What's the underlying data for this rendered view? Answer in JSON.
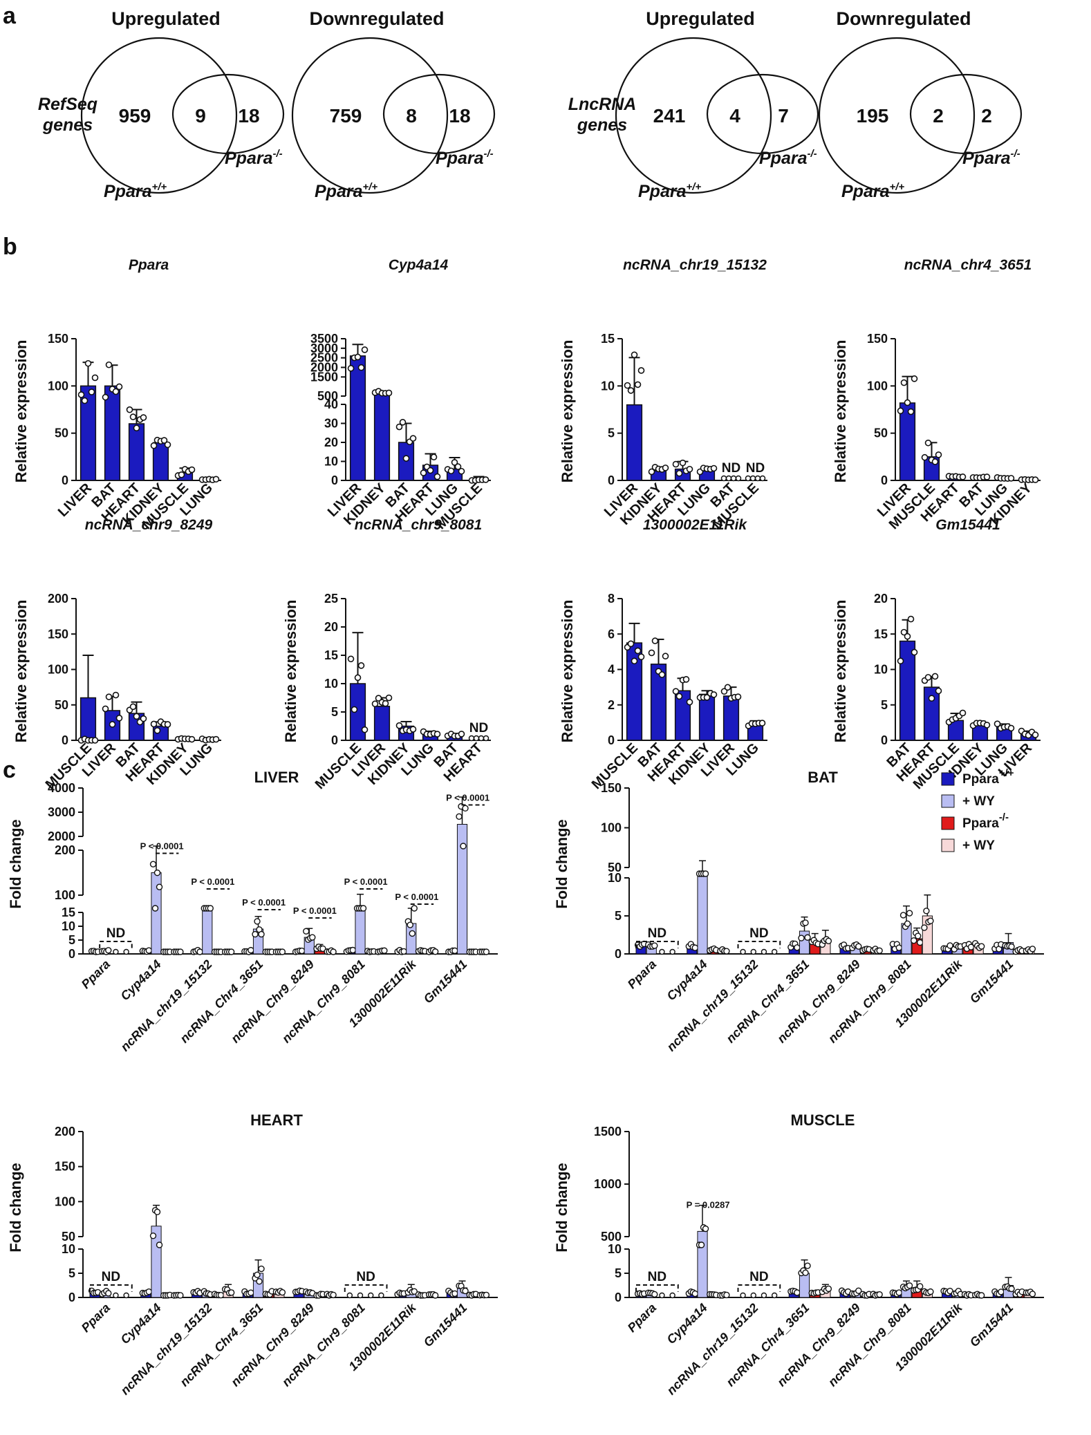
{
  "panel_labels": {
    "a": "a",
    "b": "b",
    "c": "c"
  },
  "venn": [
    {
      "id": "refseq-up",
      "title": "Upregulated",
      "left_label": "RefSeq\ngenes",
      "only_wt": "959",
      "overlap": "9",
      "only_ko": "18",
      "wt_label": "Ppara+/+",
      "ko_label": "Ppara-/-"
    },
    {
      "id": "refseq-down",
      "title": "Downregulated",
      "left_label": "",
      "only_wt": "759",
      "overlap": "8",
      "only_ko": "18",
      "wt_label": "Ppara+/+",
      "ko_label": "Ppara-/-"
    },
    {
      "id": "lnc-up",
      "title": "Upregulated",
      "left_label": "LncRNA\ngenes",
      "only_wt": "241",
      "overlap": "4",
      "only_ko": "7",
      "wt_label": "Ppara+/+",
      "ko_label": "Ppara-/-"
    },
    {
      "id": "lnc-down",
      "title": "Downregulated",
      "left_label": "",
      "only_wt": "195",
      "overlap": "2",
      "only_ko": "2",
      "wt_label": "Ppara+/+",
      "ko_label": "Ppara-/-"
    }
  ],
  "colors": {
    "wt": "#1b1bbf",
    "wt_wy": "#b9bdf2",
    "ko": "#e01b1b",
    "ko_wy": "#f7d9d9"
  },
  "legend": [
    {
      "label": "Ppara+/+",
      "color": "#1b1bbf"
    },
    {
      "label": "+ WY",
      "color": "#b9bdf2"
    },
    {
      "label": "Ppara-/-",
      "color": "#e01b1b"
    },
    {
      "label": "+ WY",
      "color": "#f7d9d9"
    }
  ],
  "chart_data": [
    {
      "id": "b-ppara",
      "type": "bar",
      "title": "Ppara",
      "ylabel": "Relative expression",
      "yticks": [
        "0",
        "50",
        "100",
        "150"
      ],
      "categories": [
        "LIVER",
        "BAT",
        "HEART",
        "KIDNEY",
        "MUSCLE",
        "LUNG"
      ],
      "values": [
        100,
        100,
        60,
        40,
        8,
        1
      ],
      "errors": [
        25,
        22,
        15,
        3,
        5,
        0.5
      ],
      "nd": []
    },
    {
      "id": "b-cyp4a14",
      "type": "bar",
      "title": "Cyp4a14",
      "ylabel": "",
      "yticks": [
        "0",
        "10",
        "20",
        "30",
        "40",
        "500",
        "1500",
        "2000",
        "2500",
        "3000",
        "3500"
      ],
      "broken_axis": true,
      "categories": [
        "LIVER",
        "KIDNEY",
        "BAT",
        "HEART",
        "LUNG",
        "MUSCLE"
      ],
      "values": [
        2600,
        700,
        20,
        8,
        6,
        1
      ],
      "errors": [
        600,
        50,
        10,
        6,
        6,
        1
      ],
      "nd": []
    },
    {
      "id": "b-chr19",
      "type": "bar",
      "title": "ncRNA_chr19_15132",
      "ylabel": "Relative expression",
      "yticks": [
        "0",
        "5",
        "10",
        "15"
      ],
      "categories": [
        "LIVER",
        "KIDNEY",
        "HEART",
        "LUNG",
        "BAT",
        "MUSCLE"
      ],
      "values": [
        8,
        1,
        1.2,
        1,
        0,
        0
      ],
      "errors": [
        5,
        0.4,
        0.8,
        0.3,
        0,
        0
      ],
      "nd": [
        "ND",
        "ND"
      ]
    },
    {
      "id": "b-chr4",
      "type": "bar",
      "title": "ncRNA_chr4_3651",
      "ylabel": "Relative expression",
      "yticks": [
        "0",
        "50",
        "100",
        "150"
      ],
      "categories": [
        "LIVER",
        "MUSCLE",
        "HEART",
        "BAT",
        "LUNG",
        "KIDNEY"
      ],
      "values": [
        82,
        25,
        4,
        3,
        2,
        1
      ],
      "errors": [
        28,
        15,
        1,
        1,
        1,
        0.5
      ],
      "nd": []
    },
    {
      "id": "b-chr9-8249",
      "type": "bar",
      "title": "ncRNA_chr9_8249",
      "ylabel": "Relative expression",
      "yticks": [
        "0",
        "50",
        "100",
        "150",
        "200"
      ],
      "categories": [
        "MUSCLE",
        "LIVER",
        "BAT",
        "HEART",
        "KIDNEY",
        "LUNG"
      ],
      "values": [
        60,
        42,
        38,
        20,
        2,
        1
      ],
      "errors": [
        60,
        20,
        16,
        6,
        1,
        1
      ],
      "nd": []
    },
    {
      "id": "b-chr9-8081",
      "type": "bar",
      "title": "ncRNA_chr9_8081",
      "ylabel": "Relative expression",
      "yticks": [
        "0",
        "5",
        "10",
        "15",
        "20",
        "25"
      ],
      "categories": [
        "MUSCLE",
        "LIVER",
        "KIDNEY",
        "LUNG",
        "BAT",
        "HEART"
      ],
      "values": [
        10,
        6,
        2.5,
        1,
        0.8,
        0
      ],
      "errors": [
        9,
        1.5,
        0.8,
        0.6,
        0.4,
        0
      ],
      "nd": [
        "ND"
      ]
    },
    {
      "id": "b-1300002",
      "type": "bar",
      "title": "1300002E11Rik",
      "ylabel": "Relative expression",
      "yticks": [
        "0",
        "2",
        "4",
        "6",
        "8"
      ],
      "categories": [
        "MUSCLE",
        "BAT",
        "HEART",
        "KIDNEY",
        "LIVER",
        "LUNG"
      ],
      "values": [
        5.5,
        4.3,
        2.8,
        2.6,
        2.5,
        0.9
      ],
      "errors": [
        1.1,
        1.4,
        0.7,
        0.2,
        0.5,
        0.2
      ],
      "nd": []
    },
    {
      "id": "b-gm15441",
      "type": "bar",
      "title": "Gm15441",
      "ylabel": "Relative expression",
      "yticks": [
        "0",
        "5",
        "10",
        "15",
        "20"
      ],
      "categories": [
        "BAT",
        "HEART",
        "MUSCLE",
        "KIDNEY",
        "LUNG",
        "LIVER"
      ],
      "values": [
        14,
        7.5,
        2.8,
        2.3,
        2,
        1
      ],
      "errors": [
        3,
        1.5,
        1,
        0.4,
        0.3,
        0.3
      ],
      "nd": []
    },
    {
      "id": "c-liver",
      "type": "bar",
      "title": "LIVER",
      "ylabel": "Fold change",
      "yticks": [
        "0",
        "5",
        "10",
        "15",
        "100",
        "200",
        "2000",
        "3000",
        "4000"
      ],
      "genes": [
        "Ppara",
        "Cyp4a14",
        "ncRNA_chr19_15132",
        "ncRNA_Chr4_3651",
        "ncRNA_Chr9_8249",
        "ncRNA_Chr9_8081",
        "1300002E11Rik",
        "Gm15441"
      ],
      "series": [
        {
          "name": "Ppara+/+",
          "values": [
            1,
            1,
            1,
            1,
            1,
            1,
            1,
            1
          ]
        },
        {
          "name": "+ WY",
          "values": [
            1,
            150,
            60,
            9,
            6,
            70,
            11,
            2500
          ]
        },
        {
          "name": "Ppara-/-",
          "values": [
            0,
            0.5,
            0.5,
            0.5,
            2,
            1,
            1,
            0.5
          ]
        },
        {
          "name": "+ WY",
          "values": [
            0,
            0.5,
            0.5,
            0.5,
            1,
            1,
            1,
            0.5
          ]
        }
      ],
      "nd_genes": [
        "Ppara"
      ],
      "pvalues": [
        "",
        "P < 0.0001",
        "P < 0.0001",
        "P < 0.0001",
        "P < 0.0001",
        "P < 0.0001",
        "P < 0.0001",
        "P < 0.0001"
      ]
    },
    {
      "id": "c-bat",
      "type": "bar",
      "title": "BAT",
      "ylabel": "Fold change",
      "yticks": [
        "0",
        "5",
        "10",
        "50",
        "100",
        "150"
      ],
      "genes": [
        "Ppara",
        "Cyp4a14",
        "ncRNA_chr19_15132",
        "ncRNA_Chr4_3651",
        "ncRNA_Chr9_8249",
        "ncRNA_Chr9_8081",
        "1300002E11Rik",
        "Gm15441"
      ],
      "series": [
        {
          "name": "Ppara+/+",
          "values": [
            1,
            1,
            0,
            1,
            1,
            1,
            1,
            1
          ]
        },
        {
          "name": "+ WY",
          "values": [
            1,
            40,
            0,
            3,
            1,
            4,
            1,
            1.5
          ]
        },
        {
          "name": "Ppara-/-",
          "values": [
            0,
            0.5,
            0,
            1.5,
            0.5,
            2,
            1,
            0.5
          ]
        },
        {
          "name": "+ WY",
          "values": [
            0,
            0.5,
            0,
            1.8,
            0.5,
            5,
            1,
            0.5
          ]
        }
      ],
      "nd_genes": [
        "Ppara",
        "ncRNA_chr19_15132"
      ],
      "pvalues": []
    },
    {
      "id": "c-heart",
      "type": "bar",
      "title": "HEART",
      "ylabel": "Fold change",
      "yticks": [
        "0",
        "5",
        "10",
        "50",
        "100",
        "150",
        "200"
      ],
      "genes": [
        "Ppara",
        "Cyp4a14",
        "ncRNA_chr19_15132",
        "ncRNA_Chr4_3651",
        "ncRNA_Chr9_8249",
        "ncRNA_Chr9_8081",
        "1300002E11Rik",
        "Gm15441"
      ],
      "series": [
        {
          "name": "Ppara+/+",
          "values": [
            1,
            1,
            1,
            1,
            1,
            0,
            1,
            1
          ]
        },
        {
          "name": "+ WY",
          "values": [
            1,
            65,
            1,
            5,
            1,
            0,
            1.5,
            2
          ]
        },
        {
          "name": "Ppara-/-",
          "values": [
            0,
            0.5,
            0.5,
            1,
            0.5,
            0,
            0.5,
            0.5
          ]
        },
        {
          "name": "+ WY",
          "values": [
            0,
            0.5,
            1.5,
            1,
            0.5,
            0,
            0.5,
            0.5
          ]
        }
      ],
      "nd_genes": [
        "Ppara",
        "ncRNA_Chr9_8081"
      ],
      "pvalues": []
    },
    {
      "id": "c-muscle",
      "type": "bar",
      "title": "MUSCLE",
      "ylabel": "Fold change",
      "yticks": [
        "0",
        "5",
        "10",
        "500",
        "1000",
        "1500"
      ],
      "genes": [
        "Ppara",
        "Cyp4a14",
        "ncRNA_chr19_15132",
        "ncRNA_Chr4_3651",
        "ncRNA_Chr9_8249",
        "ncRNA_Chr9_8081",
        "1300002E11Rik",
        "Gm15441"
      ],
      "series": [
        {
          "name": "Ppara+/+",
          "values": [
            1,
            1,
            0,
            1,
            1,
            1,
            1,
            1
          ]
        },
        {
          "name": "+ WY",
          "values": [
            1,
            550,
            0,
            5,
            1,
            2,
            1,
            2.5
          ]
        },
        {
          "name": "Ppara-/-",
          "values": [
            0,
            0.5,
            0,
            1,
            0.5,
            2,
            0.5,
            1
          ]
        },
        {
          "name": "+ WY",
          "values": [
            0,
            0.5,
            0,
            1.5,
            0.5,
            1,
            0.5,
            1
          ]
        }
      ],
      "nd_genes": [
        "Ppara",
        "ncRNA_chr19_15132"
      ],
      "pvalues": [
        "",
        "P = 0.0287",
        "",
        "",
        "",
        "",
        "",
        ""
      ]
    }
  ]
}
